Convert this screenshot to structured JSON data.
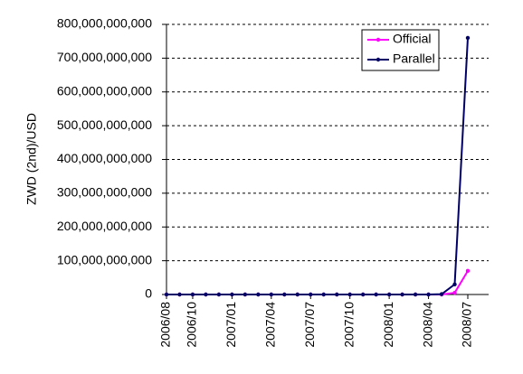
{
  "chart_data": {
    "type": "line",
    "y_label": "ZWD (2nd)/USD",
    "x": [
      "2006/08",
      "2006/09",
      "2006/10",
      "2006/11",
      "2006/12",
      "2007/01",
      "2007/02",
      "2007/03",
      "2007/04",
      "2007/05",
      "2007/06",
      "2007/07",
      "2007/08",
      "2007/09",
      "2007/10",
      "2007/11",
      "2007/12",
      "2008/01",
      "2008/02",
      "2008/03",
      "2008/04",
      "2008/05",
      "2008/06",
      "2008/07"
    ],
    "xticks": [
      "2006/08",
      "2006/10",
      "2007/01",
      "2007/04",
      "2007/07",
      "2007/10",
      "2008/01",
      "2008/04",
      "2008/07"
    ],
    "series": [
      {
        "name": "Official",
        "color": "#ff00ff",
        "values": [
          0,
          0,
          0,
          0,
          0,
          0,
          0,
          0,
          0,
          0,
          0,
          0,
          0,
          0,
          0,
          0,
          0,
          0,
          0,
          0,
          0,
          0,
          5000000000,
          70000000000
        ]
      },
      {
        "name": "Parallel",
        "color": "#000066",
        "values": [
          0,
          0,
          0,
          0,
          0,
          0,
          0,
          0,
          0,
          0,
          0,
          0,
          0,
          0,
          0,
          0,
          0,
          0,
          0,
          0,
          0,
          1000000000,
          30000000000,
          760000000000
        ]
      }
    ],
    "ylim": [
      0,
      800000000000
    ],
    "yticks": [
      {
        "value": 0,
        "label": "0"
      },
      {
        "value": 100000000000,
        "label": "100,000,000,000"
      },
      {
        "value": 200000000000,
        "label": "200,000,000,000"
      },
      {
        "value": 300000000000,
        "label": "300,000,000,000"
      },
      {
        "value": 400000000000,
        "label": "400,000,000,000"
      },
      {
        "value": 500000000000,
        "label": "500,000,000,000"
      },
      {
        "value": 600000000000,
        "label": "600,000,000,000"
      },
      {
        "value": 700000000000,
        "label": "700,000,000,000"
      },
      {
        "value": 800000000000,
        "label": "800,000,000,000"
      }
    ],
    "grid": true,
    "legend": "top-right"
  }
}
